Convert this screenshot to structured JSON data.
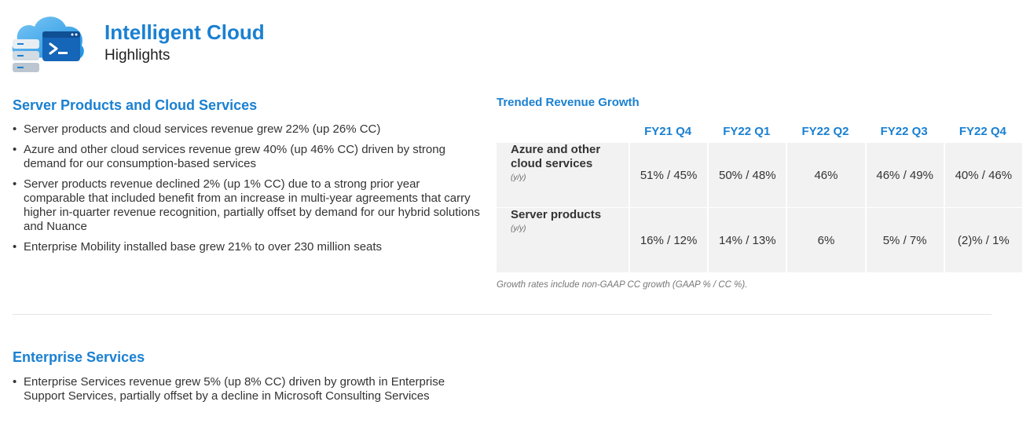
{
  "header": {
    "title": "Intelligent Cloud",
    "subtitle": "Highlights"
  },
  "server_section": {
    "heading": "Server Products and Cloud Services",
    "bullets": [
      "Server products and cloud services revenue grew 22% (up 26% CC)",
      "Azure and other cloud services revenue grew 40% (up 46% CC) driven by strong demand for our consumption-based services",
      "Server products revenue declined 2% (up 1% CC) due to a strong prior year comparable that included benefit from an increase in multi-year agreements that carry higher in-quarter revenue recognition, partially offset by demand for our hybrid solutions and Nuance",
      "Enterprise Mobility installed base grew 21% to over 230 million seats"
    ]
  },
  "enterprise_section": {
    "heading": "Enterprise Services",
    "bullets": [
      "Enterprise Services revenue grew 5% (up 8% CC) driven by growth in Enterprise Support Services, partially offset by a decline in Microsoft Consulting Services"
    ]
  },
  "trend_table": {
    "title": "Trended Revenue Growth",
    "columns": [
      "FY21 Q4",
      "FY22 Q1",
      "FY22 Q2",
      "FY22 Q3",
      "FY22 Q4"
    ],
    "rows": [
      {
        "name": "Azure and other cloud services",
        "sub": "(y/y)",
        "values": [
          "51% / 45%",
          "50% / 48%",
          "46%",
          "46% / 49%",
          "40% / 46%"
        ]
      },
      {
        "name": "Server products",
        "sub": "(y/y)",
        "values": [
          "16% / 12%",
          "14% / 13%",
          "6%",
          "5% / 7%",
          "(2)% / 1%"
        ]
      }
    ],
    "note": "Growth rates include non-GAAP CC growth (GAAP % / CC %)."
  },
  "colors": {
    "accent": "#1a80d1",
    "table_bg": "#f2f2f2",
    "body_text": "#333333"
  }
}
